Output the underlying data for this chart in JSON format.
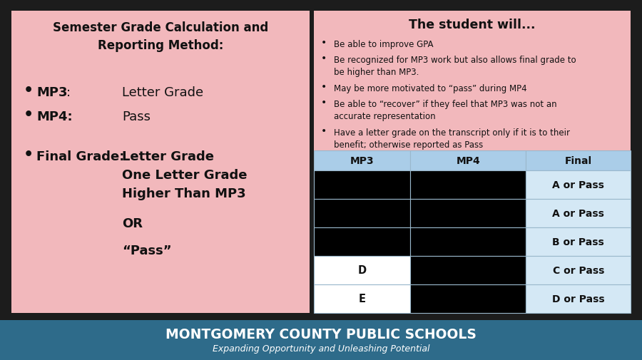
{
  "outer_bg": "#1c1c1c",
  "pink_bg": "#f2b8bc",
  "left_panel_title": "Semester Grade Calculation and\nReporting Method:",
  "mp3_label": "MP3",
  "mp3_value": "Letter Grade",
  "mp4_label": "MP4:",
  "mp4_value": "Pass",
  "final_label": "Final Grade:",
  "final_lines": [
    "Letter Grade",
    "One Letter Grade",
    "Higher Than MP3",
    "OR",
    "“Pass”"
  ],
  "right_title": "The student will...",
  "right_bullets": [
    "Be able to improve GPA",
    "Be recognized for MP3 work but also allows final grade to\nbe higher than MP3.",
    "May be more motivated to “pass” during MP4",
    "Be able to “recover” if they feel that MP3 was not an\naccurate representation",
    "Have a letter grade on the transcript only if it is to their\nbenefit; otherwise reported as Pass"
  ],
  "table_header": [
    "MP3",
    "MP4",
    "Final"
  ],
  "table_header_bg": "#aacde8",
  "table_rows": [
    {
      "mp3": "",
      "mp3_bg": "#000000",
      "mp4_bg": "#000000",
      "final": "A or Pass",
      "final_bg": "#d4e8f5"
    },
    {
      "mp3": "",
      "mp3_bg": "#000000",
      "mp4_bg": "#000000",
      "final": "A or Pass",
      "final_bg": "#d4e8f5"
    },
    {
      "mp3": "",
      "mp3_bg": "#000000",
      "mp4_bg": "#000000",
      "final": "B or Pass",
      "final_bg": "#d4e8f5"
    },
    {
      "mp3": "D",
      "mp3_bg": "#ffffff",
      "mp4_bg": "#000000",
      "final": "C or Pass",
      "final_bg": "#d4e8f5"
    },
    {
      "mp3": "E",
      "mp3_bg": "#ffffff",
      "mp4_bg": "#000000",
      "final": "D or Pass",
      "final_bg": "#d4e8f5"
    }
  ],
  "footer_bg": "#2e6b8a",
  "footer_title": "MONTGOMERY COUNTY PUBLIC SCHOOLS",
  "footer_subtitle": "Expanding Opportunity and Unleashing Potential"
}
